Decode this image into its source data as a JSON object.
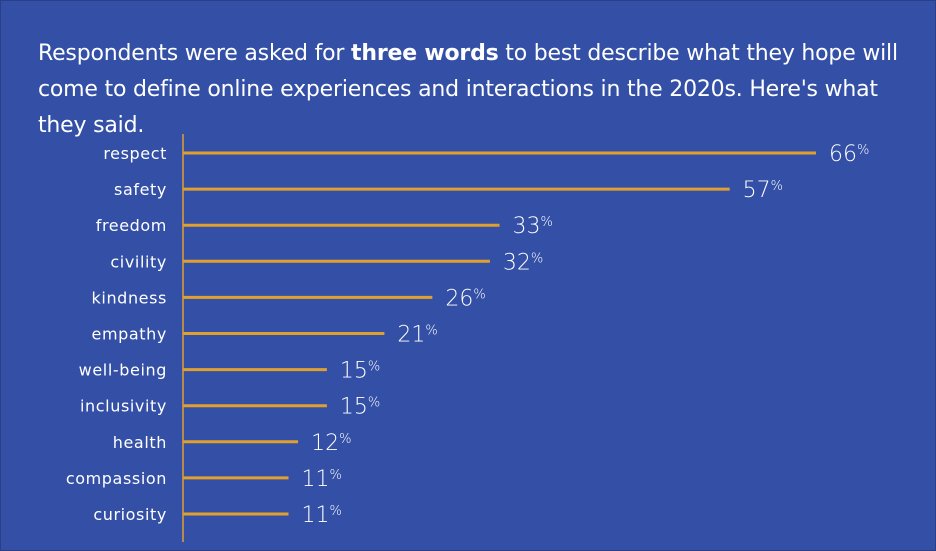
{
  "intro": {
    "before": "Respondents were asked for ",
    "bold": "three words",
    "after": " to best describe what they hope will come to define online experiences and interactions in the 2020s. Here's what they said."
  },
  "colors": {
    "background": "#3450A6",
    "bar": "#E0A030",
    "axis": "#E0A030",
    "text": "#FFFFFF"
  },
  "chart_data": {
    "type": "bar",
    "orientation": "horizontal",
    "categories": [
      "respect",
      "safety",
      "freedom",
      "civility",
      "kindness",
      "empathy",
      "well-being",
      "inclusivity",
      "health",
      "compassion",
      "curiosity"
    ],
    "values": [
      66,
      57,
      33,
      32,
      26,
      21,
      15,
      15,
      12,
      11,
      11
    ],
    "value_unit": "%",
    "xlim": [
      0,
      66
    ],
    "grid": false,
    "legend": "none"
  }
}
